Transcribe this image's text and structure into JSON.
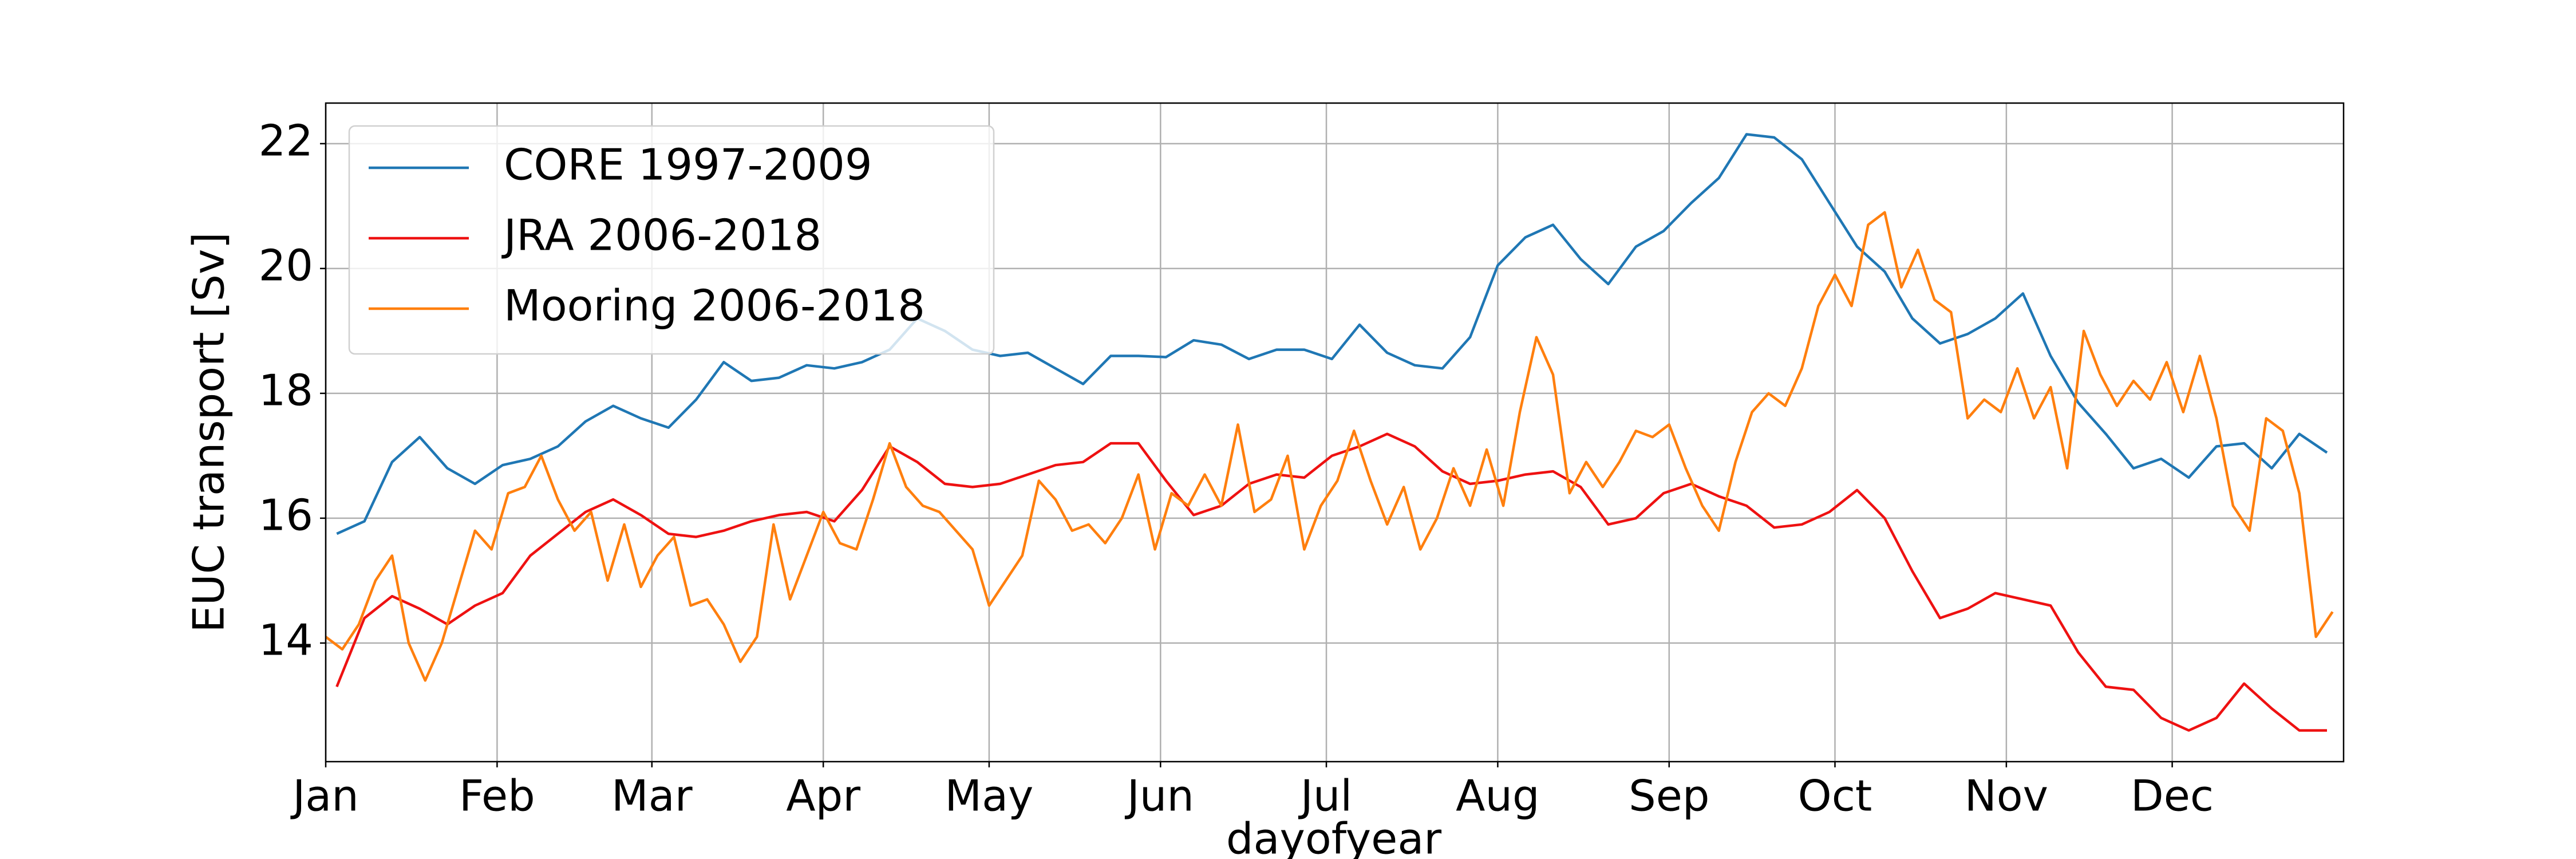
{
  "chart_data": {
    "type": "line",
    "xlabel": "dayofyear",
    "ylabel": "EUC transport [Sv]",
    "xlim": [
      1,
      366
    ],
    "ylim": [
      12.1,
      22.65
    ],
    "xticks": [
      {
        "value": 1,
        "label": "Jan"
      },
      {
        "value": 32,
        "label": "Feb"
      },
      {
        "value": 60,
        "label": "Mar"
      },
      {
        "value": 91,
        "label": "Apr"
      },
      {
        "value": 121,
        "label": "May"
      },
      {
        "value": 152,
        "label": "Jun"
      },
      {
        "value": 182,
        "label": "Jul"
      },
      {
        "value": 213,
        "label": "Aug"
      },
      {
        "value": 244,
        "label": "Sep"
      },
      {
        "value": 274,
        "label": "Oct"
      },
      {
        "value": 305,
        "label": "Nov"
      },
      {
        "value": 335,
        "label": "Dec"
      }
    ],
    "yticks": [
      14,
      16,
      18,
      20,
      22
    ],
    "grid": true,
    "legend": "upper left",
    "series": [
      {
        "name": "CORE 1997-2009",
        "color": "#1f77b4",
        "x": [
          3,
          8,
          13,
          18,
          23,
          28,
          33,
          38,
          43,
          48,
          53,
          58,
          63,
          68,
          73,
          78,
          83,
          88,
          93,
          98,
          103,
          108,
          113,
          118,
          123,
          128,
          133,
          138,
          143,
          148,
          153,
          158,
          163,
          168,
          173,
          178,
          183,
          188,
          193,
          198,
          203,
          208,
          213,
          218,
          223,
          228,
          233,
          238,
          243,
          248,
          253,
          258,
          263,
          268,
          273,
          278,
          283,
          288,
          293,
          298,
          303,
          308,
          313,
          318,
          323,
          328,
          333,
          338,
          343,
          348,
          353,
          358,
          363
        ],
        "values": [
          15.75,
          15.95,
          16.9,
          17.3,
          16.8,
          16.55,
          16.85,
          16.95,
          17.15,
          17.55,
          17.8,
          17.6,
          17.45,
          17.9,
          18.5,
          18.2,
          18.25,
          18.45,
          18.4,
          18.5,
          18.7,
          19.2,
          19.0,
          18.7,
          18.6,
          18.65,
          18.4,
          18.15,
          18.6,
          18.6,
          18.58,
          18.85,
          18.78,
          18.55,
          18.7,
          18.7,
          18.55,
          19.1,
          18.65,
          18.45,
          18.4,
          18.9,
          20.05,
          20.5,
          20.7,
          20.15,
          19.75,
          20.35,
          20.6,
          21.05,
          21.45,
          22.15,
          22.1,
          21.75,
          21.05,
          20.35,
          19.95,
          19.2,
          18.8,
          18.95,
          19.2,
          19.6,
          18.6,
          17.85,
          17.35,
          16.8,
          16.95,
          16.65,
          17.15,
          17.2,
          16.8,
          17.35,
          17.05
        ]
      },
      {
        "name": "JRA 2006-2018",
        "color": "#ee1111",
        "x": [
          3,
          8,
          13,
          18,
          23,
          28,
          33,
          38,
          43,
          48,
          53,
          58,
          63,
          68,
          73,
          78,
          83,
          88,
          93,
          98,
          103,
          108,
          113,
          118,
          123,
          128,
          133,
          138,
          143,
          148,
          153,
          158,
          163,
          168,
          173,
          178,
          183,
          188,
          193,
          198,
          203,
          208,
          213,
          218,
          223,
          228,
          233,
          238,
          243,
          248,
          253,
          258,
          263,
          268,
          273,
          278,
          283,
          288,
          293,
          298,
          303,
          308,
          313,
          318,
          323,
          328,
          333,
          338,
          343,
          348,
          353,
          358,
          363
        ],
        "values": [
          13.3,
          14.4,
          14.75,
          14.55,
          14.3,
          14.6,
          14.8,
          15.4,
          15.75,
          16.1,
          16.3,
          16.05,
          15.75,
          15.7,
          15.8,
          15.95,
          16.05,
          16.1,
          15.95,
          16.45,
          17.15,
          16.9,
          16.55,
          16.5,
          16.55,
          16.7,
          16.85,
          16.9,
          17.2,
          17.2,
          16.6,
          16.05,
          16.2,
          16.55,
          16.7,
          16.65,
          17.0,
          17.15,
          17.35,
          17.15,
          16.75,
          16.55,
          16.6,
          16.7,
          16.75,
          16.5,
          15.9,
          16.0,
          16.4,
          16.55,
          16.35,
          16.2,
          15.85,
          15.9,
          16.1,
          16.45,
          16.0,
          15.15,
          14.4,
          14.55,
          14.8,
          14.7,
          14.6,
          13.85,
          13.3,
          13.25,
          12.8,
          12.6,
          12.8,
          13.35,
          12.95,
          12.6,
          12.6
        ]
      },
      {
        "name": "Mooring 2006-2018",
        "color": "#ff7f0e",
        "x": [
          1,
          4,
          7,
          10,
          13,
          16,
          19,
          22,
          25,
          28,
          31,
          34,
          37,
          40,
          43,
          46,
          49,
          52,
          55,
          58,
          61,
          64,
          67,
          70,
          73,
          76,
          79,
          82,
          85,
          88,
          91,
          94,
          97,
          100,
          103,
          106,
          109,
          112,
          115,
          118,
          121,
          124,
          127,
          130,
          133,
          136,
          139,
          142,
          145,
          148,
          151,
          154,
          157,
          160,
          163,
          166,
          169,
          172,
          175,
          178,
          181,
          184,
          187,
          190,
          193,
          196,
          199,
          202,
          205,
          208,
          211,
          214,
          217,
          220,
          223,
          226,
          229,
          232,
          235,
          238,
          241,
          244,
          247,
          250,
          253,
          256,
          259,
          262,
          265,
          268,
          271,
          274,
          277,
          280,
          283,
          286,
          289,
          292,
          295,
          298,
          301,
          304,
          307,
          310,
          313,
          316,
          319,
          322,
          325,
          328,
          331,
          334,
          337,
          340,
          343,
          346,
          349,
          352,
          355,
          358,
          361,
          364
        ],
        "values": [
          14.1,
          13.9,
          14.3,
          15.0,
          15.4,
          14.0,
          13.4,
          14.0,
          14.9,
          15.8,
          15.5,
          16.4,
          16.5,
          17.0,
          16.3,
          15.8,
          16.1,
          15.0,
          15.9,
          14.9,
          15.4,
          15.7,
          14.6,
          14.7,
          14.3,
          13.7,
          14.1,
          15.9,
          14.7,
          15.4,
          16.1,
          15.6,
          15.5,
          16.3,
          17.2,
          16.5,
          16.2,
          16.1,
          15.8,
          15.5,
          14.6,
          15.0,
          15.4,
          16.6,
          16.3,
          15.8,
          15.9,
          15.6,
          16.0,
          16.7,
          15.5,
          16.4,
          16.2,
          16.7,
          16.2,
          17.5,
          16.1,
          16.3,
          17.0,
          15.5,
          16.2,
          16.6,
          17.4,
          16.6,
          15.9,
          16.5,
          15.5,
          16.0,
          16.8,
          16.2,
          17.1,
          16.2,
          17.7,
          18.9,
          18.3,
          16.4,
          16.9,
          16.5,
          16.9,
          17.4,
          17.3,
          17.5,
          16.8,
          16.2,
          15.8,
          16.9,
          17.7,
          18.0,
          17.8,
          18.4,
          19.4,
          19.9,
          19.4,
          20.7,
          20.9,
          19.7,
          20.3,
          19.5,
          19.3,
          17.6,
          17.9,
          17.7,
          18.4,
          17.6,
          18.1,
          16.8,
          19.0,
          18.3,
          17.8,
          18.2,
          17.9,
          18.5,
          17.7,
          18.6,
          17.6,
          16.2,
          15.8,
          17.6,
          17.4,
          16.4,
          14.1,
          14.5
        ]
      }
    ]
  }
}
